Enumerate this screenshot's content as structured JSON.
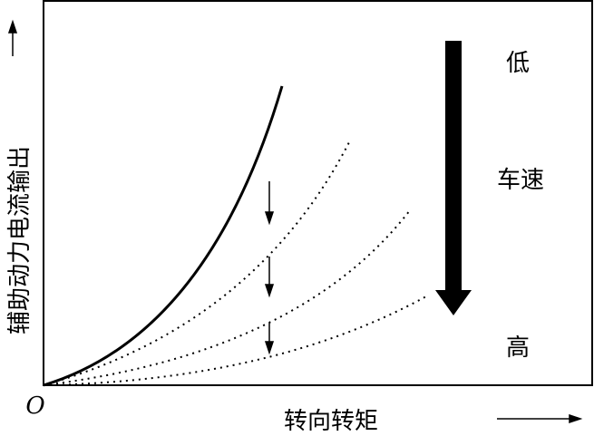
{
  "axes": {
    "y_label": "辅助动力电流输出",
    "x_label": "转向转矩",
    "origin": "O"
  },
  "speed": {
    "low": "低",
    "label": "车速",
    "high": "高"
  }
}
